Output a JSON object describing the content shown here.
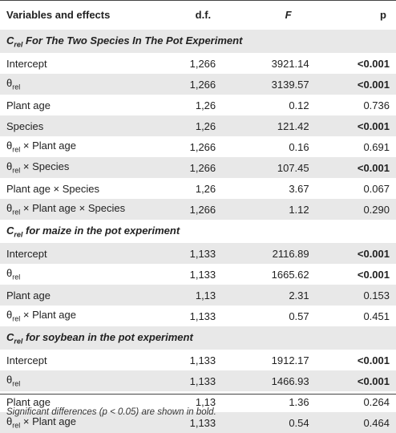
{
  "header": {
    "variables": "Variables and effects",
    "df": "d.f.",
    "F": "F",
    "p": "p"
  },
  "sections": [
    {
      "title_main": "C",
      "title_sub": "rel",
      "title_rest": " For The Two Species In The Pot Experiment",
      "rows": [
        {
          "var_main": "Intercept",
          "var_sub": "",
          "var_rest": "",
          "df": "1,266",
          "F": "3921.14",
          "p": "<0.001",
          "bold": true
        },
        {
          "var_main": "θ",
          "var_sub": "rel",
          "var_rest": "",
          "df": "1,266",
          "F": "3139.57",
          "p": "<0.001",
          "bold": true
        },
        {
          "var_main": "Plant age",
          "var_sub": "",
          "var_rest": "",
          "df": "1,26",
          "F": "0.12",
          "p": "0.736",
          "bold": false
        },
        {
          "var_main": "Species",
          "var_sub": "",
          "var_rest": "",
          "df": "1,26",
          "F": "121.42",
          "p": "<0.001",
          "bold": true
        },
        {
          "var_main": "θ",
          "var_sub": "rel",
          "var_rest": " × Plant age",
          "df": "1,266",
          "F": "0.16",
          "p": "0.691",
          "bold": false
        },
        {
          "var_main": "θ",
          "var_sub": "rel",
          "var_rest": " × Species",
          "df": "1,266",
          "F": "107.45",
          "p": "<0.001",
          "bold": true
        },
        {
          "var_main": "Plant age × Species",
          "var_sub": "",
          "var_rest": "",
          "df": "1,26",
          "F": "3.67",
          "p": "0.067",
          "bold": false
        },
        {
          "var_main": "θ",
          "var_sub": "rel",
          "var_rest": " × Plant age × Species",
          "df": "1,266",
          "F": "1.12",
          "p": "0.290",
          "bold": false
        }
      ]
    },
    {
      "title_main": "C",
      "title_sub": "rel",
      "title_rest": " for maize in the pot experiment",
      "rows": [
        {
          "var_main": "Intercept",
          "var_sub": "",
          "var_rest": "",
          "df": "1,133",
          "F": "2116.89",
          "p": "<0.001",
          "bold": true
        },
        {
          "var_main": "θ",
          "var_sub": "rel",
          "var_rest": "",
          "df": "1,133",
          "F": "1665.62",
          "p": "<0.001",
          "bold": true
        },
        {
          "var_main": "Plant age",
          "var_sub": "",
          "var_rest": "",
          "df": "1,13",
          "F": "2.31",
          "p": "0.153",
          "bold": false
        },
        {
          "var_main": "θ",
          "var_sub": "rel",
          "var_rest": " × Plant age",
          "df": "1,133",
          "F": "0.57",
          "p": "0.451",
          "bold": false
        }
      ]
    },
    {
      "title_main": "C",
      "title_sub": "rel",
      "title_rest": " for soybean in the pot experiment",
      "rows": [
        {
          "var_main": "Intercept",
          "var_sub": "",
          "var_rest": "",
          "df": "1,133",
          "F": "1912.17",
          "p": "<0.001",
          "bold": true
        },
        {
          "var_main": "θ",
          "var_sub": "rel",
          "var_rest": "",
          "df": "1,133",
          "F": "1466.93",
          "p": "<0.001",
          "bold": true
        },
        {
          "var_main": "Plant age",
          "var_sub": "",
          "var_rest": "",
          "df": "1,13",
          "F": "1.36",
          "p": "0.264",
          "bold": false
        },
        {
          "var_main": "θ",
          "var_sub": "rel",
          "var_rest": " × Plant age",
          "df": "1,133",
          "F": "0.54",
          "p": "0.464",
          "bold": false
        }
      ]
    }
  ],
  "footnote": "Significant differences (p < 0.05) are shown in bold."
}
